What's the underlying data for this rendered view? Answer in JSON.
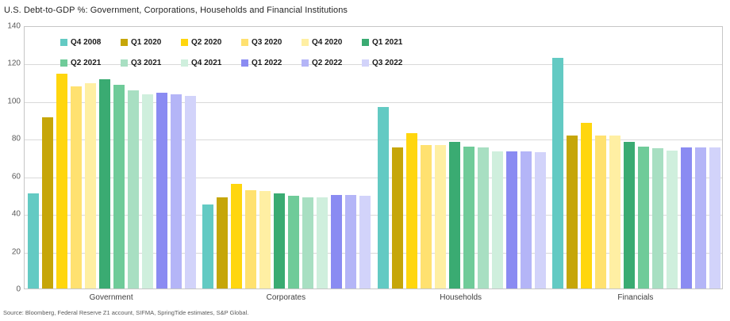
{
  "title": "U.S. Debt-to-GDP %: Government, Corporations, Households and Financial Institutions",
  "source": "Source: Bloomberg, Federal Reserve Z1 account, SIFMA, SpringTide estimates, S&P Global.",
  "colors": {
    "gridline": "#d9d9d9",
    "plot_border": "#c6c6c6",
    "axis_text": "#595959"
  },
  "chart_data": {
    "type": "bar",
    "title": "U.S. Debt-to-GDP %: Government, Corporations, Households and Financial Institutions",
    "categories": [
      "Government",
      "Corporates",
      "Households",
      "Financials"
    ],
    "series": [
      {
        "name": "Q4 2008",
        "color": "#63CAC3",
        "values": [
          51,
          45,
          97,
          123.5
        ]
      },
      {
        "name": "Q1 2020",
        "color": "#C6A609",
        "values": [
          91.5,
          49,
          75.5,
          82
        ]
      },
      {
        "name": "Q2 2020",
        "color": "#FFD60E",
        "values": [
          115,
          56,
          83,
          88.5
        ]
      },
      {
        "name": "Q3 2020",
        "color": "#FFE170",
        "values": [
          108,
          52.5,
          77,
          82
        ]
      },
      {
        "name": "Q4 2020",
        "color": "#FFEFA3",
        "values": [
          110,
          52,
          77,
          82
        ]
      },
      {
        "name": "Q1 2021",
        "color": "#3AAB72",
        "values": [
          112,
          51,
          78.5,
          78.5
        ]
      },
      {
        "name": "Q2 2021",
        "color": "#6FCB99",
        "values": [
          109,
          49.5,
          76,
          76
        ]
      },
      {
        "name": "Q3 2021",
        "color": "#A8DFC2",
        "values": [
          106,
          49,
          75.5,
          75
        ]
      },
      {
        "name": "Q4 2021",
        "color": "#CFEFDD",
        "values": [
          104,
          49,
          73.5,
          74
        ]
      },
      {
        "name": "Q1 2022",
        "color": "#8A8BF2",
        "values": [
          105,
          50,
          73.5,
          75.5
        ]
      },
      {
        "name": "Q2 2022",
        "color": "#B4B5F7",
        "values": [
          104,
          50,
          73.5,
          75.5
        ]
      },
      {
        "name": "Q3 2022",
        "color": "#D2D3FA",
        "values": [
          103,
          49.5,
          73,
          75.5
        ]
      }
    ],
    "xlabel": "",
    "ylabel": "",
    "ylim": [
      0,
      140
    ],
    "yticks": [
      0,
      20,
      40,
      60,
      80,
      100,
      120,
      140
    ],
    "grid": true,
    "legend_position": "inside-top-left",
    "legend_rows": 2
  }
}
